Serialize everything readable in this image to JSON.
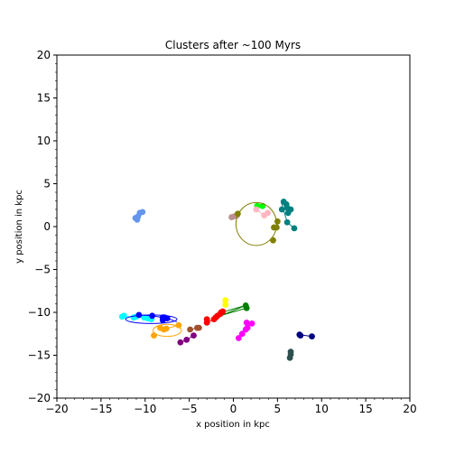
{
  "chart_data": {
    "type": "scatter",
    "title": "Clusters after ~100 Myrs",
    "xlabel": "x position in kpc",
    "ylabel": "y position in kpc",
    "xlim": [
      -20,
      20
    ],
    "ylim": [
      -20,
      20
    ],
    "xticks": [
      -20,
      -15,
      -10,
      -5,
      0,
      5,
      10,
      15,
      20
    ],
    "yticks": [
      -20,
      -15,
      -10,
      -5,
      0,
      5,
      10,
      15,
      20
    ],
    "xtick_labels": [
      "−20",
      "−15",
      "−10",
      "−5",
      "0",
      "5",
      "10",
      "15",
      "20"
    ],
    "ytick_labels": [
      "−20",
      "−15",
      "−10",
      "−5",
      "0",
      "5",
      "10",
      "15",
      "20"
    ],
    "grid": false,
    "series": [
      {
        "name": "cornflowerblue",
        "color": "#6495ed",
        "points": [
          [
            -11.1,
            1.0
          ],
          [
            -10.9,
            0.8
          ],
          [
            -10.6,
            1.6
          ],
          [
            -10.3,
            1.7
          ],
          [
            -10.8,
            1.2
          ]
        ],
        "line": [
          [
            -11.1,
            1.0
          ],
          [
            -10.8,
            1.3
          ],
          [
            -10.5,
            1.6
          ],
          [
            -10.3,
            1.7
          ]
        ]
      },
      {
        "name": "rosybrown",
        "color": "#bc8f8f",
        "points": [
          [
            -0.2,
            1.1
          ],
          [
            0.1,
            1.2
          ],
          [
            0.4,
            1.3
          ]
        ],
        "line": [
          [
            -0.2,
            1.1
          ],
          [
            0.4,
            1.3
          ]
        ]
      },
      {
        "name": "lime",
        "color": "#00ff00",
        "points": [
          [
            2.7,
            2.4
          ],
          [
            3.3,
            2.4
          ]
        ],
        "line": [
          [
            2.7,
            2.4
          ],
          [
            3.3,
            2.4
          ]
        ]
      },
      {
        "name": "pink",
        "color": "#ffb6c1",
        "points": [
          [
            2.6,
            2.0
          ],
          [
            3.5,
            1.3
          ],
          [
            3.9,
            1.6
          ]
        ],
        "line": [
          [
            2.6,
            2.0
          ],
          [
            3.5,
            1.3
          ],
          [
            3.9,
            1.6
          ]
        ]
      },
      {
        "name": "olive",
        "color": "#808000",
        "points": [
          [
            0.5,
            1.5
          ],
          [
            5.0,
            0.6
          ],
          [
            4.9,
            -0.1
          ],
          [
            4.6,
            -0.1
          ],
          [
            4.5,
            -1.6
          ]
        ],
        "line": [],
        "ellipse": {
          "cx": 2.6,
          "cy": 0.3,
          "rx": 2.3,
          "ry": 2.5
        }
      },
      {
        "name": "teal",
        "color": "#008080",
        "points": [
          [
            5.7,
            2.9
          ],
          [
            6.0,
            2.6
          ],
          [
            6.1,
            2.2
          ],
          [
            5.5,
            2.0
          ],
          [
            6.2,
            1.6
          ],
          [
            6.5,
            2.0
          ],
          [
            6.1,
            0.5
          ],
          [
            6.9,
            -0.2
          ]
        ],
        "line": [
          [
            5.4,
            3.0
          ],
          [
            5.6,
            2.2
          ],
          [
            5.9,
            1.2
          ],
          [
            6.1,
            0.5
          ],
          [
            6.9,
            -0.2
          ]
        ]
      },
      {
        "name": "yellow",
        "color": "#ffff00",
        "points": [
          [
            -0.9,
            -8.6
          ],
          [
            -0.9,
            -9.1
          ]
        ],
        "line": [
          [
            -0.9,
            -8.6
          ],
          [
            -0.9,
            -9.1
          ]
        ]
      },
      {
        "name": "green",
        "color": "#008000",
        "points": [
          [
            1.4,
            -9.2
          ],
          [
            1.5,
            -9.5
          ]
        ],
        "line": [
          [
            -1.0,
            -9.9
          ],
          [
            1.4,
            -9.2
          ],
          [
            -1.2,
            -10.3
          ],
          [
            1.5,
            -9.5
          ]
        ]
      },
      {
        "name": "red",
        "color": "#ff0000",
        "points": [
          [
            -3.0,
            -10.8
          ],
          [
            -3.0,
            -11.2
          ],
          [
            -2.0,
            -10.6
          ],
          [
            -1.8,
            -10.4
          ],
          [
            -1.5,
            -10.2
          ],
          [
            -1.2,
            -9.9
          ],
          [
            -1.4,
            -10.0
          ],
          [
            -2.2,
            -10.8
          ]
        ],
        "line": [
          [
            -3.0,
            -11.2
          ],
          [
            -2.2,
            -10.8
          ],
          [
            -1.5,
            -10.2
          ],
          [
            -1.2,
            -9.9
          ]
        ]
      },
      {
        "name": "sienna",
        "color": "#a0522d",
        "points": [
          [
            -4.9,
            -12.0
          ],
          [
            -4.1,
            -11.8
          ],
          [
            -3.9,
            -11.8
          ]
        ],
        "line": [
          [
            -4.9,
            -12.0
          ],
          [
            -3.9,
            -11.8
          ]
        ]
      },
      {
        "name": "magenta",
        "color": "#ff00ff",
        "points": [
          [
            1.5,
            -11.2
          ],
          [
            2.1,
            -11.3
          ],
          [
            1.6,
            -11.8
          ],
          [
            1.4,
            -12.0
          ],
          [
            1.0,
            -12.5
          ],
          [
            0.6,
            -13.0
          ]
        ],
        "line": [
          [
            0.6,
            -13.0
          ],
          [
            1.0,
            -12.5
          ],
          [
            1.4,
            -12.0
          ],
          [
            1.6,
            -11.6
          ],
          [
            2.1,
            -11.3
          ]
        ]
      },
      {
        "name": "navy",
        "color": "#000080",
        "points": [
          [
            7.5,
            -12.6
          ],
          [
            7.6,
            -12.7
          ],
          [
            8.9,
            -12.8
          ]
        ],
        "line": [
          [
            7.5,
            -12.6
          ],
          [
            8.9,
            -12.8
          ]
        ]
      },
      {
        "name": "darkslategray",
        "color": "#2f4f4f",
        "points": [
          [
            6.5,
            -14.6
          ],
          [
            6.5,
            -14.9
          ],
          [
            6.4,
            -15.3
          ]
        ],
        "line": [
          [
            6.5,
            -14.6
          ],
          [
            6.4,
            -15.3
          ]
        ]
      },
      {
        "name": "purple",
        "color": "#800080",
        "points": [
          [
            -6.0,
            -13.5
          ],
          [
            -5.3,
            -13.2
          ],
          [
            -4.5,
            -12.7
          ]
        ],
        "line": [
          [
            -6.0,
            -13.5
          ],
          [
            -5.3,
            -13.2
          ],
          [
            -4.5,
            -12.7
          ]
        ]
      },
      {
        "name": "cyan",
        "color": "#00ffff",
        "points": [
          [
            -12.6,
            -10.5
          ],
          [
            -12.4,
            -10.4
          ],
          [
            -11.3,
            -10.6
          ],
          [
            -11.0,
            -10.5
          ],
          [
            -10.1,
            -10.6
          ],
          [
            -9.7,
            -10.7
          ],
          [
            -9.3,
            -10.8
          ]
        ],
        "line": [
          [
            -12.6,
            -10.5
          ],
          [
            -11.0,
            -10.5
          ],
          [
            -9.3,
            -10.8
          ]
        ]
      },
      {
        "name": "blue",
        "color": "#0000ff",
        "points": [
          [
            -10.7,
            -10.3
          ],
          [
            -9.2,
            -10.4
          ],
          [
            -8.0,
            -10.6
          ],
          [
            -7.8,
            -10.6
          ],
          [
            -7.5,
            -10.7
          ],
          [
            -8.0,
            -10.9
          ]
        ],
        "line": [
          [
            -10.7,
            -10.3
          ],
          [
            -9.2,
            -10.4
          ],
          [
            -7.5,
            -10.7
          ],
          [
            -6.4,
            -11.1
          ]
        ],
        "ellipse": {
          "cx": -9.3,
          "cy": -10.8,
          "rx": 2.9,
          "ry": 0.5
        }
      },
      {
        "name": "orange",
        "color": "#ffa500",
        "points": [
          [
            -8.3,
            -11.8
          ],
          [
            -7.9,
            -12.0
          ],
          [
            -7.6,
            -11.9
          ],
          [
            -6.2,
            -11.5
          ],
          [
            -9.0,
            -12.7
          ]
        ],
        "line": [
          [
            -8.3,
            -11.8
          ],
          [
            -7.6,
            -11.9
          ],
          [
            -6.2,
            -11.5
          ]
        ],
        "ellipse": {
          "cx": -7.5,
          "cy": -12.1,
          "rx": 1.6,
          "ry": 0.7
        }
      }
    ]
  }
}
